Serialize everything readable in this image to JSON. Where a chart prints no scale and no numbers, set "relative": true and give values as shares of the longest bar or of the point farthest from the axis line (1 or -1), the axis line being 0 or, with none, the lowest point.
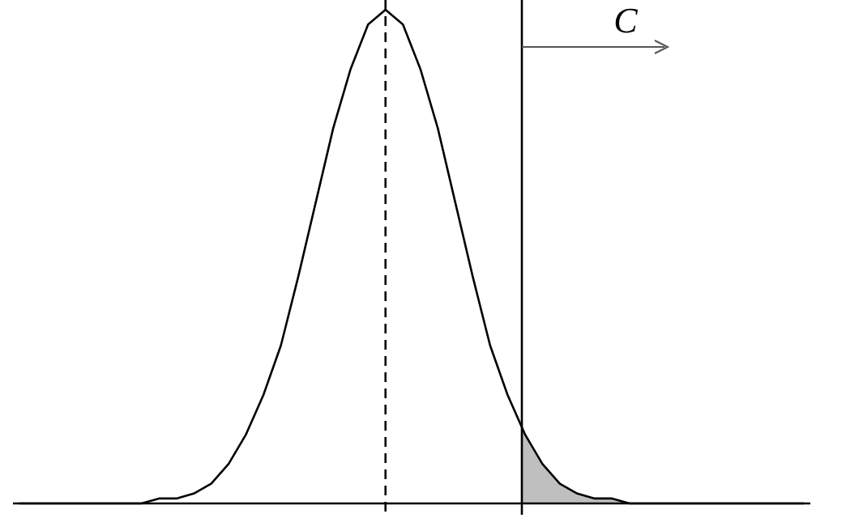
{
  "chart_data": {
    "type": "line",
    "relative": true,
    "categories": [
      null,
      null,
      null,
      null,
      null,
      null,
      null,
      null,
      null,
      null,
      null,
      null,
      null,
      null,
      null,
      null,
      null,
      null,
      null,
      null,
      null,
      null,
      null,
      null,
      null,
      null,
      null,
      null,
      null,
      null,
      null,
      null,
      null,
      null,
      null,
      null,
      null,
      null,
      null,
      null,
      null,
      null,
      null,
      null,
      null,
      null
    ],
    "series": [
      {
        "color": "#000000",
        "values": [
          0,
          0,
          0,
          0,
          0,
          0,
          0,
          0,
          0.01,
          0.01,
          0.02,
          0.04,
          0.08,
          0.14,
          0.22,
          0.32,
          0.46,
          0.61,
          0.76,
          0.88,
          0.97,
          1,
          0.97,
          0.88,
          0.76,
          0.61,
          0.46,
          0.32,
          0.22,
          0.14,
          0.08,
          0.04,
          0.02,
          0.01,
          0.01,
          0,
          0,
          0,
          0,
          0,
          0,
          0,
          0,
          0,
          0,
          0
        ]
      }
    ],
    "annotations": [
      "C"
    ]
  }
}
